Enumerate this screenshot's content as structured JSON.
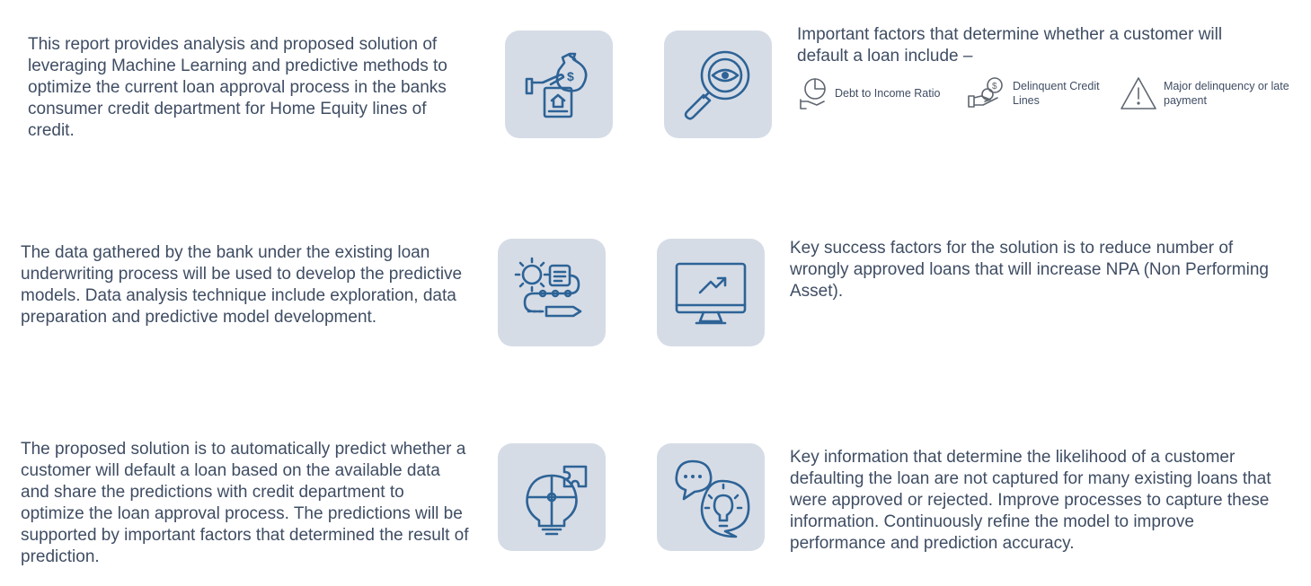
{
  "rows": [
    {
      "left_text": "This report provides analysis and proposed solution of leveraging Machine Learning and predictive methods to optimize the current loan approval process in the banks consumer credit department for Home Equity lines of credit.",
      "left_icon": "home-loan-icon",
      "right_icon": "magnifier-eye-icon",
      "right_text": "Important factors that determine whether a customer will default a loan include –"
    },
    {
      "left_text": "The data gathered by the bank under the existing loan underwriting process will be used to develop the predictive models. Data analysis technique include exploration, data preparation and predictive model development.",
      "left_icon": "process-workflow-icon",
      "right_icon": "monitor-growth-icon",
      "right_text": "Key success factors for the solution is to reduce number of wrongly approved loans that will increase NPA (Non Performing Asset)."
    },
    {
      "left_text": "The proposed solution is to automatically predict whether a customer will default a loan based on the available data and share the predictions with credit department to optimize the loan approval process. The predictions will be supported by important factors that determined the result of prediction.",
      "left_icon": "puzzle-bulb-icon",
      "right_icon": "chat-idea-icon",
      "right_text": "Key information that determine the likelihood of a customer defaulting the loan are not captured for many existing loans that were approved or rejected. Improve processes to capture these information. Continuously refine the model to improve performance and prediction accuracy."
    }
  ],
  "factors": [
    {
      "label": "Debt to Income Ratio",
      "icon": "pie-hand-icon"
    },
    {
      "label": "Delinquent Credit Lines",
      "icon": "money-hand-icon"
    },
    {
      "label": "Major delinquency or late payment",
      "icon": "warning-icon"
    }
  ],
  "colors": {
    "tile_bg": "#d6dce6",
    "icon_blue": "#2d6396",
    "text": "#3f4d63"
  }
}
